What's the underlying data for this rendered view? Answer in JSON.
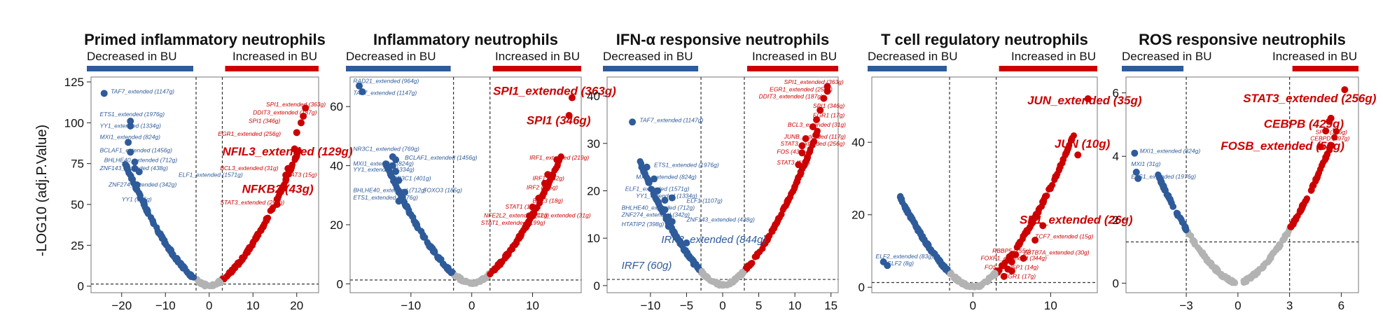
{
  "chart_data": [
    {
      "type": "scatter",
      "title": "Primed inflammatory neutrophils",
      "left_label": "Decreased in BU",
      "right_label": "Increased in BU",
      "ylabel": "-LOG10 (adj.P.Value)",
      "xlim": [
        -27,
        25
      ],
      "ylim": [
        -4,
        128
      ],
      "xticks": [
        -20,
        -10,
        0,
        10,
        20
      ],
      "yticks": [
        0,
        25,
        50,
        75,
        100,
        125
      ],
      "vlines": [
        -3,
        3
      ],
      "hline": 1.3,
      "colors": {
        "down": "#2e5b9a",
        "up": "#cc0000",
        "ns": "#b3b3b3"
      },
      "genes": [
        {
          "label": "TAF7_extended (1147g)",
          "x": -24,
          "y": 118,
          "tx": -22.5,
          "ty": 118,
          "size": "s",
          "dir": "down"
        },
        {
          "label": "ETS1_extended (1976g)",
          "x": -18,
          "y": 101,
          "tx": -25,
          "ty": 104,
          "size": "s",
          "dir": "down"
        },
        {
          "label": "YY1_extended (1334g)",
          "x": -18,
          "y": 98,
          "tx": -25,
          "ty": 97,
          "size": "s",
          "dir": "down"
        },
        {
          "label": "MXI1_extended (824g)",
          "x": -18.5,
          "y": 88,
          "tx": -25,
          "ty": 90,
          "size": "s",
          "dir": "down"
        },
        {
          "label": "BCLAF1_extended (1456g)",
          "x": -18,
          "y": 82,
          "tx": -25,
          "ty": 82,
          "size": "s",
          "dir": "down"
        },
        {
          "label": "BHLHE40_extended (712g)",
          "x": -17,
          "y": 76,
          "tx": -24,
          "ty": 76,
          "size": "s",
          "dir": "down"
        },
        {
          "label": "ZNF143_extended (438g)",
          "x": -17,
          "y": 72,
          "tx": -25,
          "ty": 71,
          "size": "s",
          "dir": "down"
        },
        {
          "label": "ELF1_extended (1571g)",
          "x": -16,
          "y": 70,
          "tx": -7,
          "ty": 67,
          "size": "s",
          "dir": "down"
        },
        {
          "label": "ZNF274_extended (342g)",
          "x": -16.5,
          "y": 62,
          "tx": -23,
          "ty": 61,
          "size": "s",
          "dir": "down"
        },
        {
          "label": "YY1 (535g)",
          "x": -15,
          "y": 52,
          "tx": -20,
          "ty": 52,
          "size": "s",
          "dir": "down"
        },
        {
          "label": "SPI1_extended (363g)",
          "x": 22,
          "y": 109,
          "tx": 13,
          "ty": 110,
          "size": "s",
          "dir": "up"
        },
        {
          "label": "DDIT3_extended (187g)",
          "x": 21.5,
          "y": 104,
          "tx": 10,
          "ty": 105,
          "size": "s",
          "dir": "up"
        },
        {
          "label": "SPI1 (346g)",
          "x": 21,
          "y": 100,
          "tx": 9,
          "ty": 100,
          "size": "s",
          "dir": "up"
        },
        {
          "label": "EGR1_extended (256g)",
          "x": 20,
          "y": 94,
          "tx": 2,
          "ty": 92,
          "size": "s",
          "dir": "up"
        },
        {
          "label": "NFIL3_extended (129g)",
          "x": 19.5,
          "y": 84,
          "tx": 3,
          "ty": 80,
          "size": "l",
          "dir": "up"
        },
        {
          "label": "BCL3_extended (31g)",
          "x": 18,
          "y": 72,
          "tx": 2.5,
          "ty": 71,
          "size": "s",
          "dir": "up"
        },
        {
          "label": "STAT3 (15g)",
          "x": 17.5,
          "y": 68,
          "tx": 17,
          "ty": 67,
          "size": "s",
          "dir": "up"
        },
        {
          "label": "NFKB2 (43g)",
          "x": 17,
          "y": 60,
          "tx": 7.5,
          "ty": 57,
          "size": "l",
          "dir": "up"
        },
        {
          "label": "STAT3_extended (256g)",
          "x": 15.5,
          "y": 50,
          "tx": 2.5,
          "ty": 50,
          "size": "s",
          "dir": "up"
        }
      ]
    },
    {
      "type": "scatter",
      "title": "Inflammatory neutrophils",
      "left_label": "Decreased in BU",
      "right_label": "Increased in BU",
      "xlim": [
        -20,
        18
      ],
      "ylim": [
        -3,
        70
      ],
      "xticks": [
        -10,
        0,
        10
      ],
      "yticks": [
        0,
        20,
        40,
        60
      ],
      "vlines": [
        -3,
        3
      ],
      "hline": 1.3,
      "colors": {
        "down": "#2e5b9a",
        "up": "#cc0000",
        "ns": "#b3b3b3"
      },
      "genes": [
        {
          "label": "RAD21_extended (964g)",
          "x": -18.5,
          "y": 67,
          "tx": -19.5,
          "ty": 68,
          "size": "s",
          "dir": "down"
        },
        {
          "label": "TAF7_extended (1147g)",
          "x": -18,
          "y": 65,
          "tx": -19.5,
          "ty": 64,
          "size": "s",
          "dir": "down"
        },
        {
          "label": "NR3C1_extended (769g)",
          "x": -13,
          "y": 43,
          "tx": -19.5,
          "ty": 45,
          "size": "s",
          "dir": "down"
        },
        {
          "label": "BCLAF1_extended (1456g)",
          "x": -12.5,
          "y": 42,
          "tx": -11,
          "ty": 42,
          "size": "s",
          "dir": "down"
        },
        {
          "label": "MXI1_extended (824g)",
          "x": -13,
          "y": 40,
          "tx": -19.5,
          "ty": 40,
          "size": "s",
          "dir": "down"
        },
        {
          "label": "YY1_extended (1334g)",
          "x": -12.5,
          "y": 38,
          "tx": -19.5,
          "ty": 38,
          "size": "s",
          "dir": "down"
        },
        {
          "label": "NR3C1 (401g)",
          "x": -12,
          "y": 35,
          "tx": -13,
          "ty": 35,
          "size": "s",
          "dir": "down"
        },
        {
          "label": "BHLHE40_extended (712g)",
          "x": -12,
          "y": 31,
          "tx": -19.5,
          "ty": 31,
          "size": "s",
          "dir": "down"
        },
        {
          "label": "FOXO3 (185g)",
          "x": -11,
          "y": 31,
          "tx": -8,
          "ty": 31,
          "size": "s",
          "dir": "down"
        },
        {
          "label": "ETS1_extended (1976g)",
          "x": -12,
          "y": 28,
          "tx": -19.5,
          "ty": 28.5,
          "size": "s",
          "dir": "down"
        },
        {
          "label": "SPI1_extended (363g)",
          "x": 16.5,
          "y": 63,
          "tx": 3.5,
          "ty": 64,
          "size": "l",
          "dir": "up"
        },
        {
          "label": "SPI1 (346g)",
          "x": 16,
          "y": 57,
          "tx": 9,
          "ty": 54,
          "size": "l",
          "dir": "up"
        },
        {
          "label": "IRF1_extended (219g)",
          "x": 14,
          "y": 42,
          "tx": 9.5,
          "ty": 42,
          "size": "s",
          "dir": "up"
        },
        {
          "label": "IRF1 (182g)",
          "x": 12.5,
          "y": 37,
          "tx": 10,
          "ty": 35,
          "size": "s",
          "dir": "up"
        },
        {
          "label": "IRF2 (115g)",
          "x": 12,
          "y": 34,
          "tx": 9,
          "ty": 32,
          "size": "s",
          "dir": "up"
        },
        {
          "label": "BCL3 (18g)",
          "x": 11,
          "y": 29,
          "tx": 10,
          "ty": 27.5,
          "size": "s",
          "dir": "up"
        },
        {
          "label": "STAT1 (112g)",
          "x": 10,
          "y": 26,
          "tx": 5.5,
          "ty": 25.5,
          "size": "s",
          "dir": "up"
        },
        {
          "label": "NFE2L2_extended (12g)",
          "x": 9.5,
          "y": 23,
          "tx": 2,
          "ty": 22.5,
          "size": "s",
          "dir": "up"
        },
        {
          "label": "BCL3_extended (31g)",
          "x": 10,
          "y": 23,
          "tx": 10,
          "ty": 22.5,
          "size": "s",
          "dir": "up"
        },
        {
          "label": "STAT1_extended (199g)",
          "x": 9,
          "y": 20,
          "tx": 1.5,
          "ty": 20,
          "size": "s",
          "dir": "up"
        }
      ]
    },
    {
      "type": "scatter",
      "title": "IFN-α responsive neutrophils",
      "left_label": "Decreased in BU",
      "right_label": "Increased in BU",
      "xlim": [
        -16,
        16
      ],
      "ylim": [
        -1.5,
        44
      ],
      "xticks": [
        -10,
        -5,
        0,
        5,
        10,
        15
      ],
      "yticks": [
        0,
        10,
        20,
        30,
        40
      ],
      "vlines": [
        -3,
        3
      ],
      "hline": 1.3,
      "colors": {
        "down": "#2e5b9a",
        "up": "#cc0000",
        "ns": "#b3b3b3"
      },
      "genes": [
        {
          "label": "TAF7_extended (1147g)",
          "x": -12.5,
          "y": 34.5,
          "tx": -11.5,
          "ty": 34.5,
          "size": "s",
          "dir": "down"
        },
        {
          "label": "ETS1_extended (1976g)",
          "x": -10.5,
          "y": 25,
          "tx": -9.5,
          "ty": 25,
          "size": "s",
          "dir": "down"
        },
        {
          "label": "MXI1_extended (824g)",
          "x": -9.5,
          "y": 22.5,
          "tx": -12,
          "ty": 22.5,
          "size": "s",
          "dir": "down"
        },
        {
          "label": "ELF1_extended (1571g)",
          "x": -9,
          "y": 20,
          "tx": -13.5,
          "ty": 20,
          "size": "s",
          "dir": "down"
        },
        {
          "label": "ELF1 (1107g)",
          "x": -7,
          "y": 18.5,
          "tx": -5,
          "ty": 17.5,
          "size": "s",
          "dir": "down"
        },
        {
          "label": "YY1_extended (1334g)",
          "x": -8,
          "y": 18,
          "tx": -12,
          "ty": 18.5,
          "size": "s",
          "dir": "down"
        },
        {
          "label": "BHLHE40_extended (712g)",
          "x": -8,
          "y": 16,
          "tx": -14,
          "ty": 16,
          "size": "s",
          "dir": "down"
        },
        {
          "label": "ZNF274_extended (342g)",
          "x": -7.5,
          "y": 14.5,
          "tx": -14,
          "ty": 14.5,
          "size": "s",
          "dir": "down"
        },
        {
          "label": "ZNF143_extended (438g)",
          "x": -7,
          "y": 13.5,
          "tx": -5,
          "ty": 13.5,
          "size": "s",
          "dir": "down"
        },
        {
          "label": "HTATIP2 (398g)",
          "x": -7.5,
          "y": 12.5,
          "tx": -14,
          "ty": 12.5,
          "size": "s",
          "dir": "down"
        },
        {
          "label": "IRF3_extended (844g)",
          "x": -5,
          "y": 9,
          "tx": -8.5,
          "ty": 9,
          "size": "m",
          "dir": "down"
        },
        {
          "label": "IRF7 (60g)",
          "x": -4,
          "y": 4.5,
          "tx": -14,
          "ty": 3.5,
          "size": "m",
          "dir": "down"
        },
        {
          "label": "SPI1_extended (363g)",
          "x": 14.5,
          "y": 42,
          "tx": 8.5,
          "ty": 42.5,
          "size": "s",
          "dir": "up"
        },
        {
          "label": "EGR1_extended (256g)",
          "x": 14.5,
          "y": 41,
          "tx": 6.5,
          "ty": 41,
          "size": "s",
          "dir": "up"
        },
        {
          "label": "DDIT3_extended (187g)",
          "x": 14,
          "y": 39.5,
          "tx": 5,
          "ty": 39.5,
          "size": "s",
          "dir": "up"
        },
        {
          "label": "SPI1 (346g)",
          "x": 13.5,
          "y": 37,
          "tx": 12.5,
          "ty": 37.5,
          "size": "s",
          "dir": "up"
        },
        {
          "label": "EGR1 (17g)",
          "x": 13,
          "y": 35,
          "tx": 12.5,
          "ty": 35.5,
          "size": "s",
          "dir": "up"
        },
        {
          "label": "BCL3_extended (31g)",
          "x": 12.5,
          "y": 33.5,
          "tx": 9,
          "ty": 33.5,
          "size": "s",
          "dir": "up"
        },
        {
          "label": "JUNB_extended (117g)",
          "x": 11.5,
          "y": 31,
          "tx": 8.5,
          "ty": 31,
          "size": "s",
          "dir": "up"
        },
        {
          "label": "STAT3_extended (256g)",
          "x": 11,
          "y": 29.5,
          "tx": 8,
          "ty": 29.5,
          "size": "s",
          "dir": "up"
        },
        {
          "label": "FOS (43g)",
          "x": 11,
          "y": 28,
          "tx": 7.5,
          "ty": 27.8,
          "size": "s",
          "dir": "up"
        },
        {
          "label": "STAT3 (15g)",
          "x": 10.5,
          "y": 25.5,
          "tx": 7.5,
          "ty": 25.5,
          "size": "s",
          "dir": "up"
        }
      ]
    },
    {
      "type": "scatter",
      "title": "T cell regulatory neutrophils",
      "left_label": "Decreased in BU",
      "right_label": "Increased in BU",
      "xlim": [
        -13,
        16
      ],
      "ylim": [
        -1.5,
        58
      ],
      "xticks": [
        0,
        10
      ],
      "yticks": [
        0,
        20,
        40
      ],
      "vlines": [
        -3,
        3
      ],
      "hline": 1.3,
      "colors": {
        "down": "#2e5b9a",
        "up": "#cc0000",
        "ns": "#b3b3b3"
      },
      "genes": [
        {
          "label": "JUN_extended (35g)",
          "x": 14.8,
          "y": 52,
          "tx": 7,
          "ty": 50.5,
          "size": "l",
          "dir": "up"
        },
        {
          "label": "JUN (10g)",
          "x": 13.5,
          "y": 36.5,
          "tx": 10.5,
          "ty": 38.5,
          "size": "l",
          "dir": "up"
        },
        {
          "label": "SP1_extended (26g)",
          "x": 9,
          "y": 17,
          "tx": 6,
          "ty": 17.5,
          "size": "l",
          "dir": "up"
        },
        {
          "label": "TCF7_extended (15g)",
          "x": 8,
          "y": 13,
          "tx": 8,
          "ty": 13.5,
          "size": "s",
          "dir": "up"
        },
        {
          "label": "RBBP5 (155g)",
          "x": 5.5,
          "y": 9,
          "tx": 2.5,
          "ty": 9.5,
          "size": "s",
          "dir": "up"
        },
        {
          "label": "ZBTB7A_extended (30g)",
          "x": 6.5,
          "y": 8,
          "tx": 6.5,
          "ty": 9,
          "size": "s",
          "dir": "up"
        },
        {
          "label": "FOXP1_extended (344g)",
          "x": 5,
          "y": 7,
          "tx": 1,
          "ty": 7.5,
          "size": "s",
          "dir": "up"
        },
        {
          "label": "FOS (43g)",
          "x": 4.5,
          "y": 5,
          "tx": 1.5,
          "ty": 5,
          "size": "s",
          "dir": "up"
        },
        {
          "label": "SP1 (14g)",
          "x": 5,
          "y": 4.5,
          "tx": 5,
          "ty": 5,
          "size": "s",
          "dir": "up"
        },
        {
          "label": "EGR1 (17g)",
          "x": 4,
          "y": 3,
          "tx": 4,
          "ty": 2.5,
          "size": "s",
          "dir": "up"
        },
        {
          "label": "ELF2_extended (83g)",
          "x": -11.5,
          "y": 7,
          "tx": -12.5,
          "ty": 8,
          "size": "s",
          "dir": "down"
        },
        {
          "label": "ELF2 (8g)",
          "x": -11,
          "y": 6,
          "tx": -11,
          "ty": 6,
          "size": "s",
          "dir": "down"
        }
      ]
    },
    {
      "type": "scatter",
      "title": "ROS responsive neutrophils",
      "left_label": "Decreased in BU",
      "right_label": "Increased in BU",
      "xlim": [
        -6.5,
        7
      ],
      "ylim": [
        -0.3,
        6.5
      ],
      "xticks": [
        -3,
        0,
        3,
        6
      ],
      "xtick_labels": [
        "−3",
        "0",
        "3",
        "6"
      ],
      "yticks": [
        0,
        2,
        4,
        6
      ],
      "vlines": [
        -3,
        3
      ],
      "hline": 1.3,
      "colors": {
        "down": "#2e5b9a",
        "up": "#cc0000",
        "ns": "#b3b3b3"
      },
      "genes": [
        {
          "label": "STAT3_extended (256g)",
          "x": 6.2,
          "y": 6.1,
          "tx": 0.3,
          "ty": 5.7,
          "size": "l",
          "dir": "up"
        },
        {
          "label": "CEBPB (429g)",
          "x": 5.4,
          "y": 5.2,
          "tx": 1.5,
          "ty": 4.9,
          "size": "l",
          "dir": "up"
        },
        {
          "label": "SPI1 (346g)",
          "x": 5.3,
          "y": 5.1,
          "tx": 4.5,
          "ty": 4.7,
          "size": "s",
          "dir": "up"
        },
        {
          "label": "CEBPD (397g)",
          "x": 5.1,
          "y": 4.8,
          "tx": 4.2,
          "ty": 4.5,
          "size": "s",
          "dir": "up"
        },
        {
          "label": "FOSB_extended (59g)",
          "x": 4.8,
          "y": 4.3,
          "tx": -1,
          "ty": 4.2,
          "size": "l",
          "dir": "up"
        },
        {
          "label": "MXI1_extended (824g)",
          "x": -6,
          "y": 4.1,
          "tx": -5.7,
          "ty": 4.1,
          "size": "s",
          "dir": "down"
        },
        {
          "label": "MXI1 (31g)",
          "x": -5.9,
          "y": 3.5,
          "tx": -6.2,
          "ty": 3.7,
          "size": "s",
          "dir": "down"
        },
        {
          "label": "ETS1_extended (1976g)",
          "x": -5.8,
          "y": 3.3,
          "tx": -6.2,
          "ty": 3.3,
          "size": "s",
          "dir": "down"
        }
      ]
    }
  ]
}
